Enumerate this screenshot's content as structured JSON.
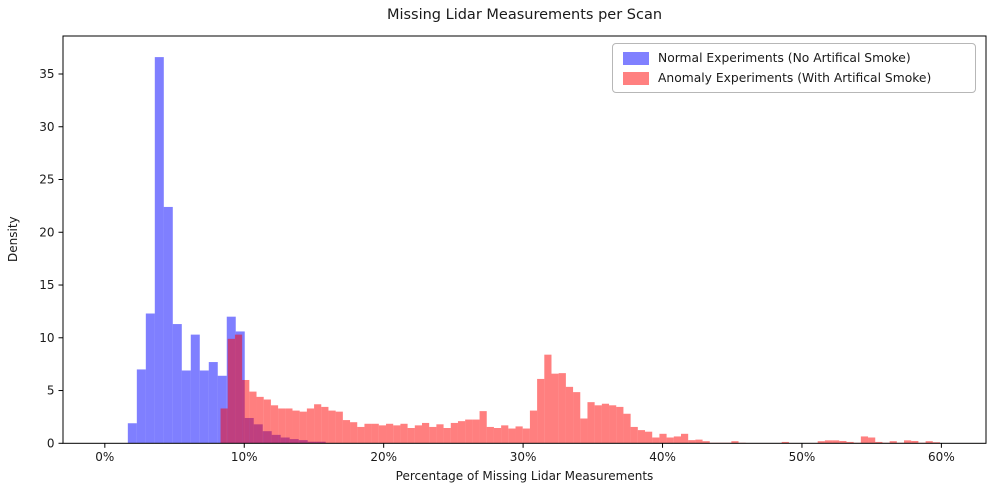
{
  "chart_data": {
    "type": "histogram",
    "title": "Missing Lidar Measurements per Scan",
    "xlabel": "Percentage of Missing Lidar Measurements",
    "ylabel": "Density",
    "x_ticks": [
      {
        "value": 0,
        "label": "0%"
      },
      {
        "value": 10,
        "label": "10%"
      },
      {
        "value": 20,
        "label": "20%"
      },
      {
        "value": 30,
        "label": "30%"
      },
      {
        "value": 40,
        "label": "40%"
      },
      {
        "value": 50,
        "label": "50%"
      },
      {
        "value": 60,
        "label": "60%"
      }
    ],
    "y_ticks": [
      0,
      5,
      10,
      15,
      20,
      25,
      30,
      35
    ],
    "xlim": [
      -3.0,
      63.2
    ],
    "ylim": [
      0,
      38.6
    ],
    "grid": false,
    "legend_position": "upper right",
    "series": [
      {
        "name": "Normal Experiments (No Artifical Smoke)",
        "fill": "rgba(0,0,255,0.5)",
        "swatch": "#8080ff",
        "bin_start_pct": 1.65,
        "bin_width_pct": 0.645,
        "densities": [
          1.9,
          7.0,
          12.3,
          36.6,
          22.4,
          11.3,
          6.9,
          10.3,
          6.9,
          7.7,
          6.4,
          12.0,
          10.6,
          2.4,
          1.8,
          1.15,
          0.8,
          0.55,
          0.4,
          0.3,
          0.15,
          0.15
        ]
      },
      {
        "name": "Anomaly Experiments (With Artifical Smoke)",
        "fill": "rgba(255,0,0,0.5)",
        "swatch": "#ff8080",
        "bin_start_pct": 8.3,
        "bin_width_pct": 0.516,
        "densities": [
          3.3,
          9.9,
          10.3,
          6.0,
          4.9,
          4.4,
          4.15,
          3.6,
          3.3,
          3.3,
          3.1,
          3.0,
          3.3,
          3.7,
          3.45,
          3.1,
          3.0,
          2.2,
          2.0,
          1.55,
          1.85,
          1.85,
          1.7,
          1.85,
          1.7,
          1.85,
          1.45,
          1.7,
          1.93,
          1.55,
          1.8,
          1.45,
          1.93,
          2.1,
          2.25,
          2.25,
          3.05,
          1.55,
          1.45,
          1.7,
          1.4,
          1.6,
          1.4,
          3.1,
          6.1,
          8.4,
          6.6,
          6.65,
          5.35,
          4.85,
          2.35,
          3.9,
          3.6,
          3.75,
          3.6,
          3.45,
          2.8,
          1.55,
          1.25,
          1.1,
          0.55,
          0.9,
          0.55,
          0.65,
          0.9,
          0.3,
          0.35,
          0.2,
          0.05,
          0.05,
          0.05,
          0.2,
          0.05,
          0.03,
          0.03,
          0.03,
          0.03,
          0.03,
          0.13,
          0.03,
          0.03,
          0.03,
          0.03,
          0.2,
          0.28,
          0.28,
          0.22,
          0.13,
          0.05,
          0.65,
          0.55,
          0.13,
          0.05,
          0.2,
          0.05,
          0.28,
          0.22,
          0.05,
          0.2,
          0.1
        ]
      }
    ]
  }
}
